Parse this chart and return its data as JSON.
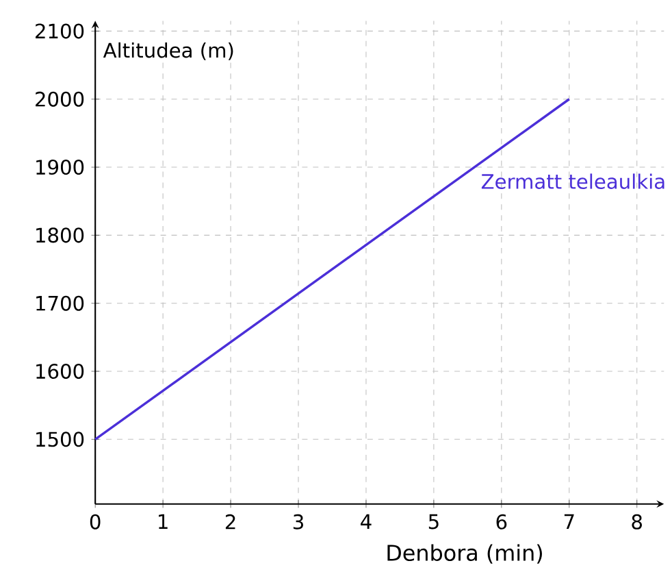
{
  "chart_data": {
    "type": "line",
    "xlabel": "Denbora (min)",
    "ylabel": "Altitudea (m)",
    "x": [
      0,
      7
    ],
    "series": [
      {
        "name": "Zermatt  teleaulkia",
        "color": "#4b2fd8",
        "values": [
          1500,
          2000
        ]
      }
    ],
    "xlim": [
      0,
      8.4
    ],
    "ylim": [
      1405,
      2115
    ],
    "xticks": [
      0,
      1,
      2,
      3,
      4,
      5,
      6,
      7,
      8
    ],
    "yticks": [
      1500,
      1600,
      1700,
      1800,
      1900,
      2000,
      2100
    ],
    "grid": true,
    "line_style": "solid"
  }
}
